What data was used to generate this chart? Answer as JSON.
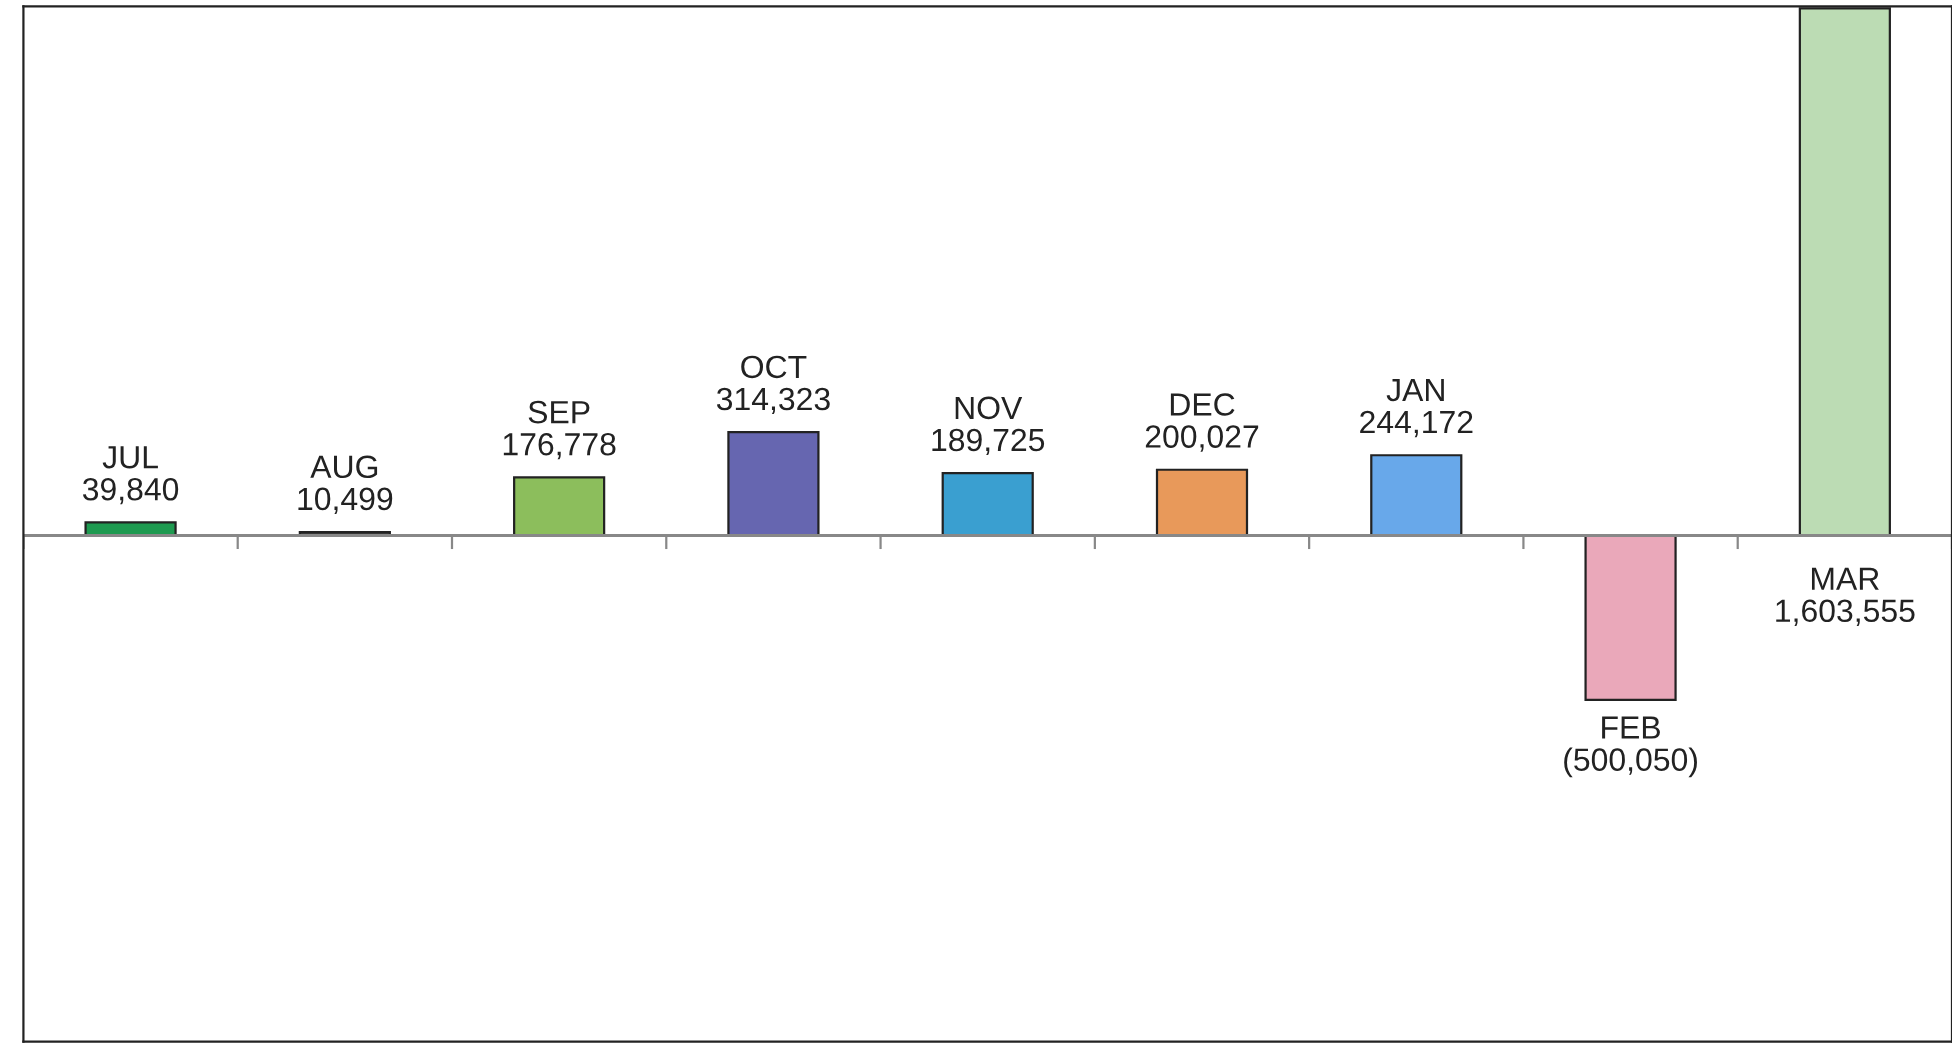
{
  "chart_data": {
    "type": "bar",
    "categories": [
      "JUL",
      "AUG",
      "SEP",
      "OCT",
      "NOV",
      "DEC",
      "JAN",
      "FEB",
      "MAR"
    ],
    "values": [
      39840,
      10499,
      176778,
      314323,
      189725,
      200027,
      244172,
      -500050,
      1603555
    ],
    "value_labels": [
      "39,840",
      "10,499",
      "176,778",
      "314,323",
      "189,725",
      "200,027",
      "244,172",
      "(500,050)",
      "1,603,555"
    ],
    "colors": [
      "#1e9a50",
      "#3c3c3c",
      "#8cbe5c",
      "#6666b0",
      "#3a9fd0",
      "#e8995a",
      "#68a8ea",
      "#eaa8ba",
      "#bcdcb4"
    ],
    "ylim": [
      -1540000,
      1610000
    ]
  }
}
